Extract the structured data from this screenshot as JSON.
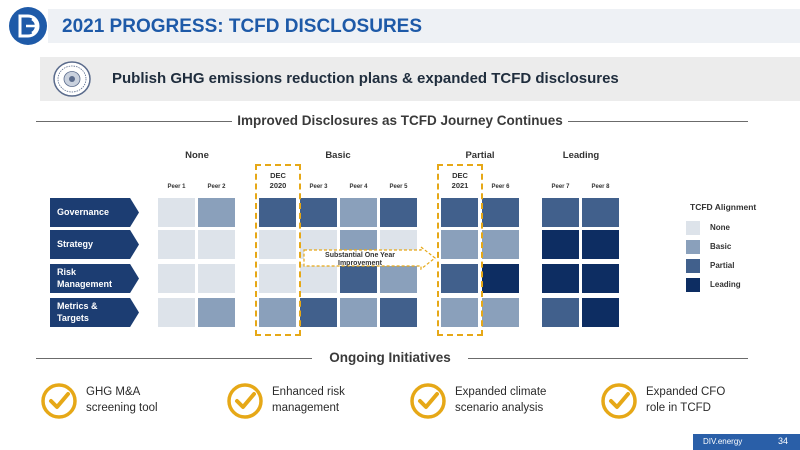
{
  "header": {
    "title": "2021 PROGRESS: TCFD DISCLOSURES",
    "logo_icon": "div-energy-logo-icon"
  },
  "subtitle": {
    "text": "Publish GHG emissions reduction plans & expanded TCFD disclosures",
    "seal_icon": "company-seal-icon"
  },
  "matrix": {
    "section_title": "Improved Disclosures as TCFD Journey Continues",
    "categories": [
      "None",
      "Basic",
      "Partial",
      "Leading"
    ],
    "peers": [
      "Peer 1",
      "Peer 2",
      "Peer 3",
      "Peer 4",
      "Peer 5",
      "Peer 6",
      "Peer 7",
      "Peer 8"
    ],
    "highlights": [
      {
        "line1": "DEC",
        "line2": "2020"
      },
      {
        "line1": "DEC",
        "line2": "2021"
      }
    ],
    "rows": [
      {
        "label_line1": "Governance",
        "label_line2": ""
      },
      {
        "label_line1": "Strategy",
        "label_line2": ""
      },
      {
        "label_line1": "Risk",
        "label_line2": "Management"
      },
      {
        "label_line1": "Metrics &",
        "label_line2": "Targets"
      }
    ],
    "improvement": {
      "line1": "Substantial One Year",
      "line2": "Improvement"
    },
    "levels": {
      "None": "#dde3ea",
      "Basic": "#8aa0bb",
      "Partial": "#41608c",
      "Leading": "#0d2d62"
    }
  },
  "legend": {
    "title": "TCFD Alignment",
    "items": [
      "None",
      "Basic",
      "Partial",
      "Leading"
    ]
  },
  "initiatives": {
    "section_title": "Ongoing Initiatives",
    "items": [
      {
        "line1": "GHG M&A",
        "line2": "screening tool",
        "icon": "checkmark-circle-icon"
      },
      {
        "line1": "Enhanced risk",
        "line2": "management",
        "icon": "checkmark-circle-icon"
      },
      {
        "line1": "Expanded climate",
        "line2": "scenario analysis",
        "icon": "checkmark-circle-icon"
      },
      {
        "line1": "Expanded CFO",
        "line2": "role in TCFD",
        "icon": "checkmark-circle-icon"
      }
    ]
  },
  "footer": {
    "brand": "DIV.energy",
    "page": "34"
  },
  "colors": {
    "accent": "#1e5aa8",
    "navy": "#1c3d72",
    "gold": "#e6a817"
  }
}
